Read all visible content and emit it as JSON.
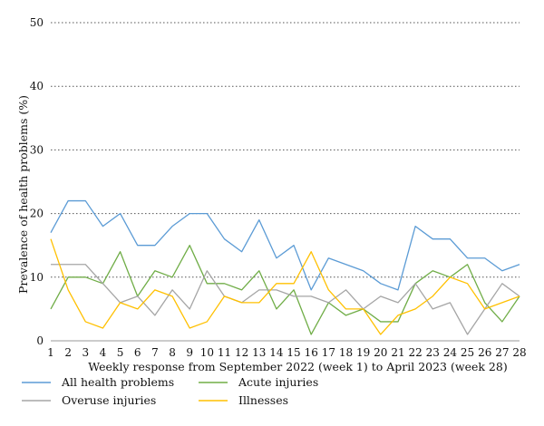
{
  "chart_data": {
    "type": "line",
    "title": "",
    "xlabel": "Weekly response from September 2022 (week 1) to April 2023 (week 28)",
    "ylabel": "Prevalence of health problems (%)",
    "ylim": [
      0,
      50
    ],
    "yticks": [
      0,
      10,
      20,
      30,
      40,
      50
    ],
    "x": [
      1,
      2,
      3,
      4,
      5,
      6,
      7,
      8,
      9,
      10,
      11,
      12,
      13,
      14,
      15,
      16,
      17,
      18,
      19,
      20,
      21,
      22,
      23,
      24,
      25,
      26,
      27,
      28
    ],
    "grid": "horizontal dotted",
    "legend_position": "bottom",
    "series": [
      {
        "name": "All health problems",
        "color": "#5b9bd5",
        "values": [
          17,
          22,
          22,
          18,
          20,
          15,
          15,
          18,
          20,
          20,
          16,
          14,
          19,
          13,
          15,
          8,
          13,
          12,
          11,
          9,
          8,
          18,
          16,
          16,
          13,
          13,
          11,
          12
        ]
      },
      {
        "name": "Acute injuries",
        "color": "#70ad47",
        "values": [
          5,
          10,
          10,
          9,
          14,
          7,
          11,
          10,
          15,
          9,
          9,
          8,
          11,
          5,
          8,
          1,
          6,
          4,
          5,
          3,
          3,
          9,
          11,
          10,
          12,
          6,
          3,
          7
        ]
      },
      {
        "name": "Overuse injuries",
        "color": "#a5a5a5",
        "values": [
          12,
          12,
          12,
          9,
          6,
          7,
          4,
          8,
          5,
          11,
          7,
          6,
          8,
          8,
          7,
          7,
          6,
          8,
          5,
          7,
          6,
          9,
          5,
          6,
          1,
          5,
          9,
          7
        ]
      },
      {
        "name": "Illnesses",
        "color": "#ffc000",
        "values": [
          16,
          8,
          3,
          2,
          6,
          5,
          8,
          7,
          2,
          3,
          7,
          6,
          6,
          9,
          9,
          14,
          8,
          5,
          5,
          1,
          4,
          5,
          7,
          10,
          9,
          5,
          6,
          7
        ]
      }
    ]
  }
}
